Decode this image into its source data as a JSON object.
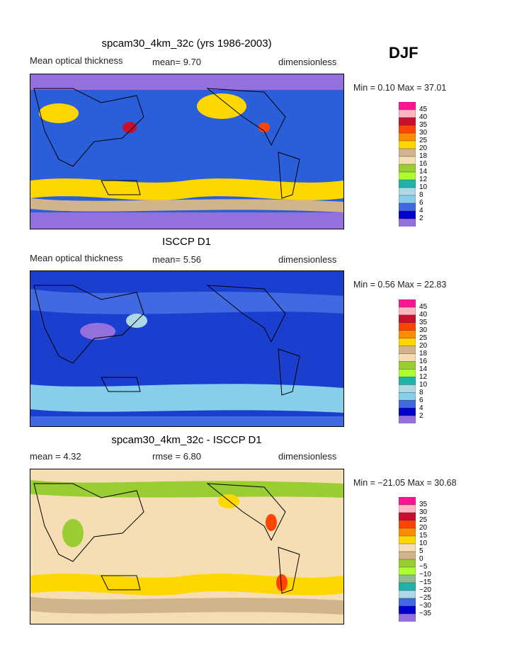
{
  "season": "DJF",
  "panels": [
    {
      "title": "spcam30_4km_32c (yrs 1986-2003)",
      "left_label": "Mean optical thickness",
      "mid_label": "mean=   9.70",
      "right_label": "dimensionless",
      "minmax": "Min =   0.10 Max =  37.01",
      "base_color": "#2b5fd9",
      "colorbar": {
        "labels": [
          "45",
          "40",
          "35",
          "30",
          "25",
          "20",
          "18",
          "16",
          "14",
          "12",
          "10",
          "8",
          "6",
          "4",
          "2"
        ],
        "colors": [
          "#ff1493",
          "#ffb6c1",
          "#c8102e",
          "#ff4500",
          "#ff8c00",
          "#ffd700",
          "#d2b48c",
          "#f5deb3",
          "#9acd32",
          "#adff2f",
          "#20b2aa",
          "#add8e6",
          "#87ceeb",
          "#4169e1",
          "#0000cd",
          "#9370db"
        ]
      }
    },
    {
      "title": "ISCCP D1",
      "left_label": "Mean optical thickness",
      "mid_label": "mean=   5.56",
      "right_label": "dimensionless",
      "minmax": "Min =   0.56 Max =  22.83",
      "base_color": "#1a3fcf",
      "colorbar": {
        "labels": [
          "45",
          "40",
          "35",
          "30",
          "25",
          "20",
          "18",
          "16",
          "14",
          "12",
          "10",
          "8",
          "6",
          "4",
          "2"
        ],
        "colors": [
          "#ff1493",
          "#ffb6c1",
          "#c8102e",
          "#ff4500",
          "#ff8c00",
          "#ffd700",
          "#d2b48c",
          "#f5deb3",
          "#9acd32",
          "#adff2f",
          "#20b2aa",
          "#add8e6",
          "#87ceeb",
          "#4169e1",
          "#0000cd",
          "#9370db"
        ]
      }
    },
    {
      "title": "spcam30_4km_32c - ISCCP D1",
      "left_label": "mean =    4.32",
      "mid_label": "rmse =    6.80",
      "right_label": "dimensionless",
      "minmax": "Min = −21.05 Max =  30.68",
      "base_color": "#f5deb3",
      "colorbar": {
        "labels": [
          "35",
          "30",
          "25",
          "20",
          "15",
          "10",
          "5",
          "0",
          "−5",
          "−10",
          "−15",
          "−20",
          "−25",
          "−30",
          "−35"
        ],
        "colors": [
          "#ff1493",
          "#ffb6c1",
          "#c8102e",
          "#ff4500",
          "#ff8c00",
          "#ffd700",
          "#f5deb3",
          "#d2b48c",
          "#9acd32",
          "#adff2f",
          "#8fbc8f",
          "#20b2aa",
          "#add8e6",
          "#4169e1",
          "#0000cd",
          "#9370db"
        ]
      }
    }
  ]
}
